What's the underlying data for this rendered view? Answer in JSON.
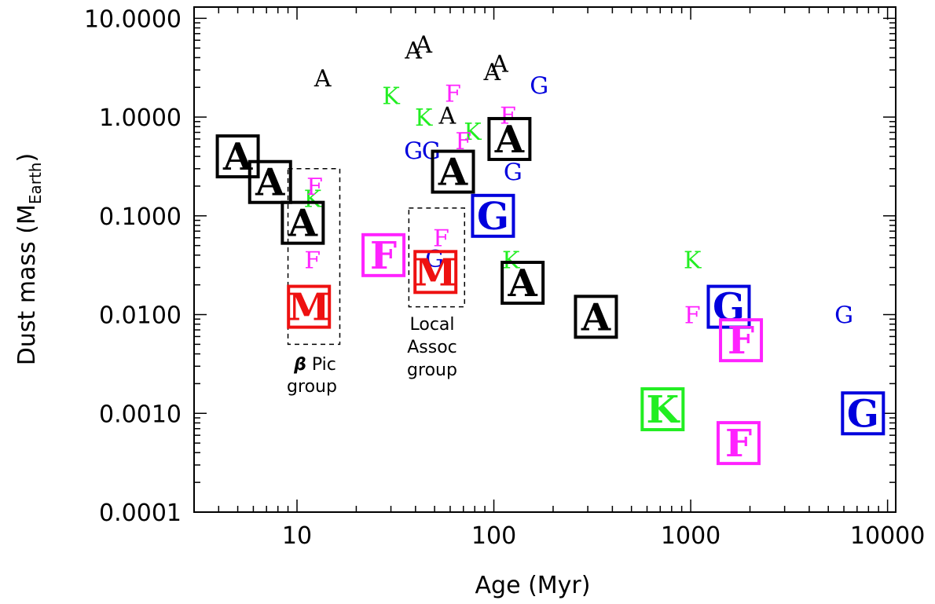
{
  "chart_data": {
    "type": "scatter",
    "xlabel": "Age (Myr)",
    "ylabel_main": "Dust mass (M",
    "ylabel_sub": "Earth",
    "ylabel_close": ")",
    "xscale": "log",
    "yscale": "log",
    "xlim": [
      3,
      11000
    ],
    "ylim": [
      0.0001,
      13
    ],
    "grid": false,
    "x_tick_labels": [
      {
        "value": 10,
        "label": "10"
      },
      {
        "value": 100,
        "label": "100"
      },
      {
        "value": 1000,
        "label": "1000"
      },
      {
        "value": 10000,
        "label": "10000"
      }
    ],
    "y_tick_labels": [
      {
        "value": 10,
        "label": "10.0000"
      },
      {
        "value": 1,
        "label": "1.0000"
      },
      {
        "value": 0.1,
        "label": "0.1000"
      },
      {
        "value": 0.01,
        "label": "0.0100"
      },
      {
        "value": 0.001,
        "label": "0.0010"
      },
      {
        "value": 0.0001,
        "label": "0.0001"
      }
    ],
    "colors": {
      "A": "#000000",
      "F": "#ff22ff",
      "G": "#0000dd",
      "K": "#22ee22",
      "M": "#ee1111"
    },
    "points": [
      {
        "t": "A",
        "x": 13.5,
        "y": 2.5,
        "boxed": false
      },
      {
        "t": "A",
        "x": 39,
        "y": 4.8,
        "boxed": false
      },
      {
        "t": "A",
        "x": 44,
        "y": 5.5,
        "boxed": false
      },
      {
        "t": "A",
        "x": 98,
        "y": 2.9,
        "boxed": false
      },
      {
        "t": "A",
        "x": 107,
        "y": 3.5,
        "boxed": false
      },
      {
        "t": "A",
        "x": 58,
        "y": 1.05,
        "boxed": false
      },
      {
        "t": "K",
        "x": 30,
        "y": 1.65,
        "boxed": false
      },
      {
        "t": "K",
        "x": 44,
        "y": 1.0,
        "boxed": false
      },
      {
        "t": "K",
        "x": 78,
        "y": 0.72,
        "boxed": false
      },
      {
        "t": "K",
        "x": 12,
        "y": 0.15,
        "boxed": false
      },
      {
        "t": "K",
        "x": 122,
        "y": 0.036,
        "boxed": false
      },
      {
        "t": "K",
        "x": 1020,
        "y": 0.036,
        "boxed": false
      },
      {
        "t": "F",
        "x": 62,
        "y": 1.75,
        "boxed": false
      },
      {
        "t": "F",
        "x": 118,
        "y": 1.05,
        "boxed": false
      },
      {
        "t": "F",
        "x": 70,
        "y": 0.58,
        "boxed": false
      },
      {
        "t": "F",
        "x": 12.3,
        "y": 0.2,
        "boxed": false
      },
      {
        "t": "F",
        "x": 12,
        "y": 0.036,
        "boxed": false
      },
      {
        "t": "F",
        "x": 54,
        "y": 0.06,
        "boxed": false
      },
      {
        "t": "F",
        "x": 1020,
        "y": 0.01,
        "boxed": false
      },
      {
        "t": "G",
        "x": 39,
        "y": 0.46,
        "boxed": false
      },
      {
        "t": "G",
        "x": 48,
        "y": 0.46,
        "boxed": false
      },
      {
        "t": "G",
        "x": 125,
        "y": 0.28,
        "boxed": false
      },
      {
        "t": "G",
        "x": 170,
        "y": 2.1,
        "boxed": false
      },
      {
        "t": "G",
        "x": 50,
        "y": 0.037,
        "boxed": false
      },
      {
        "t": "G",
        "x": 6000,
        "y": 0.01,
        "boxed": false
      },
      {
        "t": "A",
        "x": 5,
        "y": 0.4,
        "boxed": true
      },
      {
        "t": "A",
        "x": 7.3,
        "y": 0.22,
        "boxed": true
      },
      {
        "t": "A",
        "x": 10.7,
        "y": 0.085,
        "boxed": true
      },
      {
        "t": "A",
        "x": 62,
        "y": 0.28,
        "boxed": true
      },
      {
        "t": "A",
        "x": 120,
        "y": 0.6,
        "boxed": true
      },
      {
        "t": "A",
        "x": 140,
        "y": 0.021,
        "boxed": true
      },
      {
        "t": "A",
        "x": 330,
        "y": 0.0095,
        "boxed": true
      },
      {
        "t": "G",
        "x": 99,
        "y": 0.1,
        "boxed": true
      },
      {
        "t": "G",
        "x": 1560,
        "y": 0.012,
        "boxed": true
      },
      {
        "t": "G",
        "x": 7500,
        "y": 0.001,
        "boxed": true
      },
      {
        "t": "F",
        "x": 27.5,
        "y": 0.04,
        "boxed": true
      },
      {
        "t": "F",
        "x": 1800,
        "y": 0.0055,
        "boxed": true
      },
      {
        "t": "F",
        "x": 1750,
        "y": 0.0005,
        "boxed": true
      },
      {
        "t": "K",
        "x": 720,
        "y": 0.0011,
        "boxed": true
      },
      {
        "t": "M",
        "x": 11.5,
        "y": 0.012,
        "boxed": true
      },
      {
        "t": "M",
        "x": 50.5,
        "y": 0.027,
        "boxed": true
      }
    ],
    "group_boxes": [
      {
        "name": "beta-pic-group-box",
        "x0": 9,
        "x1": 16.5,
        "y0": 0.005,
        "y1": 0.3
      },
      {
        "name": "local-assoc-group-box",
        "x0": 37,
        "x1": 71,
        "y0": 0.012,
        "y1": 0.12
      }
    ],
    "annotations": {
      "beta_pic": {
        "symbol": "β",
        "line1_rest": " Pic",
        "line2": "group"
      },
      "local_assoc": {
        "line1": "Local",
        "line2": "Assoc",
        "line3": "group"
      }
    }
  }
}
